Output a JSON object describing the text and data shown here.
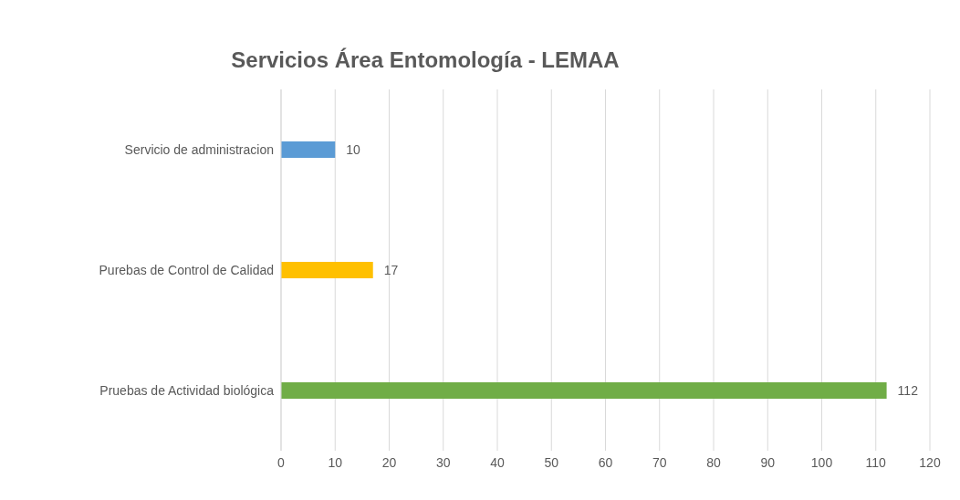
{
  "chart_data": {
    "type": "bar",
    "orientation": "horizontal",
    "title": "Servicios Área  Entomología - LEMAA",
    "categories": [
      "Servicio de administracion",
      "Purebas de Control de Calidad",
      "Pruebas de Actividad biológica"
    ],
    "values": [
      10,
      17,
      112
    ],
    "colors": [
      "#5b9bd5",
      "#ffc000",
      "#70ad47"
    ],
    "xlim": [
      0,
      120
    ],
    "xticks": [
      0,
      10,
      20,
      30,
      40,
      50,
      60,
      70,
      80,
      90,
      100,
      110,
      120
    ],
    "grid": "x",
    "data_labels": true,
    "legend": false
  }
}
